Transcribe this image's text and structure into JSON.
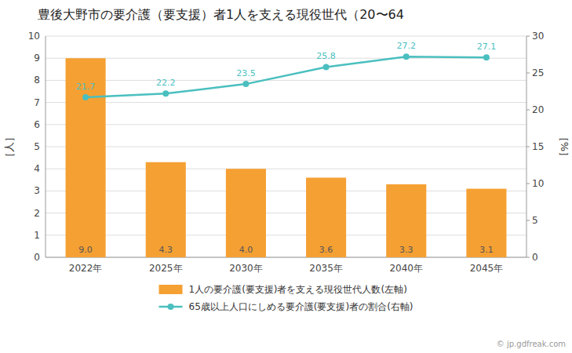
{
  "chart_data": {
    "type": "bar",
    "title": "豊後大野市の要介護（要支援）者1人を支える現役世代（20〜64",
    "categories": [
      "2022年",
      "2025年",
      "2030年",
      "2035年",
      "2040年",
      "2045年"
    ],
    "series": [
      {
        "name": "1人の要介護(要支援)者を支える現役世代人数(左軸)",
        "color": "#F5A033",
        "values": [
          9.0,
          4.3,
          4.0,
          3.6,
          3.3,
          3.1
        ],
        "value_labels": [
          "9.0",
          "4.3",
          "4.0",
          "3.6",
          "3.3",
          "3.1"
        ]
      },
      {
        "name": "65歳以上人口にしめる要介護(要支援)者の割合(右軸)",
        "type": "line",
        "axis": "y2",
        "color": "#4BBFBF",
        "marker": "circle",
        "values": [
          21.7,
          22.2,
          23.5,
          25.8,
          27.2,
          27.1
        ]
      }
    ],
    "ylabel": "［人］",
    "y2label": "［%］",
    "ylim": [
      0,
      10
    ],
    "yticks": [
      0,
      1,
      2,
      3,
      4,
      5,
      6,
      7,
      8,
      9,
      10
    ],
    "y2lim": [
      0,
      30
    ],
    "y2ticks": [
      0,
      5,
      10,
      15,
      20,
      25,
      30
    ],
    "grid": true,
    "legend": "bottom",
    "data_labels": true,
    "annotations": [
      "© jp.gdfreak.com"
    ]
  }
}
